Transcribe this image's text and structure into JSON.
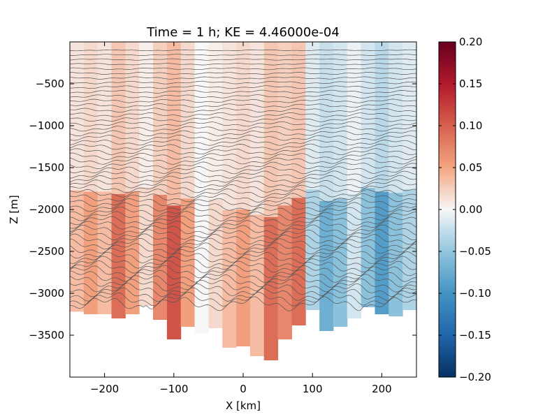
{
  "chart_data": {
    "type": "heatmap",
    "title": "Time = 1 h; KE = 4.46000e-04",
    "xlabel": "X [km]",
    "ylabel": "Z [m]",
    "xlim": [
      -250,
      250
    ],
    "ylim": [
      -4000,
      0
    ],
    "xticks": [
      -200,
      -100,
      0,
      100,
      200
    ],
    "xtick_labels": [
      "−200",
      "−100",
      "0",
      "100",
      "200"
    ],
    "yticks": [
      -500,
      -1000,
      -1500,
      -2000,
      -2500,
      -3000,
      -3500
    ],
    "ytick_labels": [
      "−500",
      "−1000",
      "−1500",
      "−2000",
      "−2500",
      "−3000",
      "−3500"
    ],
    "colorbar": {
      "colormap": "RdBu_r",
      "range": [
        -0.2,
        0.2
      ],
      "ticks": [
        0.2,
        0.15,
        0.1,
        0.05,
        0.0,
        -0.05,
        -0.1,
        -0.15,
        -0.2
      ],
      "tick_labels": [
        "0.20",
        "0.15",
        "0.10",
        "0.05",
        "0.00",
        "−0.05",
        "−0.10",
        "−0.15",
        "−0.20"
      ]
    },
    "field_columns": [
      {
        "x": -240,
        "value": 0.02
      },
      {
        "x": -220,
        "value": 0.03
      },
      {
        "x": -200,
        "value": 0.02
      },
      {
        "x": -180,
        "value": 0.05
      },
      {
        "x": -160,
        "value": 0.03
      },
      {
        "x": -140,
        "value": 0.01
      },
      {
        "x": -120,
        "value": 0.04
      },
      {
        "x": -100,
        "value": 0.06
      },
      {
        "x": -80,
        "value": 0.03
      },
      {
        "x": -60,
        "value": 0.0
      },
      {
        "x": -40,
        "value": 0.01
      },
      {
        "x": -20,
        "value": 0.02
      },
      {
        "x": 0,
        "value": 0.03
      },
      {
        "x": 20,
        "value": 0.02
      },
      {
        "x": 40,
        "value": 0.05
      },
      {
        "x": 60,
        "value": 0.04
      },
      {
        "x": 80,
        "value": 0.05
      },
      {
        "x": 100,
        "value": -0.02
      },
      {
        "x": 120,
        "value": -0.04
      },
      {
        "x": 140,
        "value": -0.03
      },
      {
        "x": 160,
        "value": -0.01
      },
      {
        "x": 180,
        "value": -0.03
      },
      {
        "x": 200,
        "value": -0.05
      },
      {
        "x": 220,
        "value": -0.03
      },
      {
        "x": 240,
        "value": -0.02
      }
    ],
    "bottom_depth": [
      {
        "x": -250,
        "depth": -3200
      },
      {
        "x": -225,
        "depth": -3250
      },
      {
        "x": -200,
        "depth": -3250
      },
      {
        "x": -180,
        "depth": -3300
      },
      {
        "x": -160,
        "depth": -3250
      },
      {
        "x": -140,
        "depth": -3150
      },
      {
        "x": -125,
        "depth": -3250
      },
      {
        "x": -110,
        "depth": -3450
      },
      {
        "x": -95,
        "depth": -3600
      },
      {
        "x": -80,
        "depth": -3400
      },
      {
        "x": -65,
        "depth": -3550
      },
      {
        "x": -50,
        "depth": -3350
      },
      {
        "x": -35,
        "depth": -3450
      },
      {
        "x": -20,
        "depth": -3650
      },
      {
        "x": -5,
        "depth": -3600
      },
      {
        "x": 10,
        "depth": -3700
      },
      {
        "x": 20,
        "depth": -3750
      },
      {
        "x": 30,
        "depth": -3700
      },
      {
        "x": 40,
        "depth": -3800
      },
      {
        "x": 55,
        "depth": -3600
      },
      {
        "x": 70,
        "depth": -3450
      },
      {
        "x": 85,
        "depth": -3350
      },
      {
        "x": 100,
        "depth": -3200
      },
      {
        "x": 120,
        "depth": -3450
      },
      {
        "x": 140,
        "depth": -3400
      },
      {
        "x": 160,
        "depth": -3300
      },
      {
        "x": 175,
        "depth": -3150
      },
      {
        "x": 190,
        "depth": -3200
      },
      {
        "x": 210,
        "depth": -3300
      },
      {
        "x": 230,
        "depth": -3250
      },
      {
        "x": 250,
        "depth": -3150
      }
    ],
    "contours": {
      "count": 56,
      "top_depth": -100,
      "spacing_m": 55,
      "color": "#555555"
    },
    "grid": false,
    "legend": "none"
  }
}
